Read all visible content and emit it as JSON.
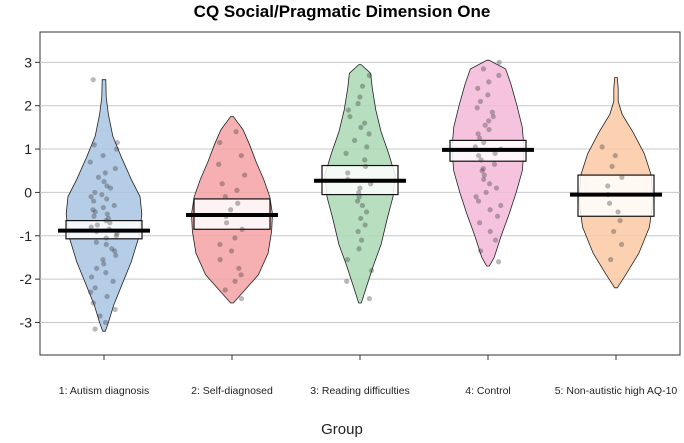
{
  "chart_data": {
    "type": "pirate",
    "title": "CQ Social/Pragmatic Dimension One",
    "xlabel": "Group",
    "ylabel": "",
    "ylim": [
      -3.75,
      3.7
    ],
    "yticks": [
      -3,
      -2,
      -1,
      0,
      1,
      2,
      3
    ],
    "grid": true,
    "categories": [
      "1: Autism diagnosis",
      "2: Self-diagnosed",
      "3: Reading difficulties",
      "4: Control",
      "5: Non-autistic high AQ-10"
    ],
    "colors": [
      "#a9c4e4",
      "#f5a2a5",
      "#a9d8b4",
      "#f4b8d9",
      "#fbc9a3"
    ],
    "groups": [
      {
        "mean": -0.88,
        "ci": [
          -1.07,
          -0.65
        ],
        "min": -3.2,
        "max": 2.6,
        "density": [
          [
            -3.2,
            0.03
          ],
          [
            -3.0,
            0.1
          ],
          [
            -2.6,
            0.22
          ],
          [
            -2.2,
            0.38
          ],
          [
            -1.6,
            0.62
          ],
          [
            -1.0,
            0.8
          ],
          [
            -0.5,
            0.86
          ],
          [
            -0.1,
            0.82
          ],
          [
            0.3,
            0.62
          ],
          [
            0.8,
            0.4
          ],
          [
            1.3,
            0.2
          ],
          [
            1.8,
            0.1
          ],
          [
            2.2,
            0.05
          ],
          [
            2.6,
            0.04
          ]
        ],
        "points": [
          -3.15,
          -3.0,
          -2.85,
          -2.7,
          -2.55,
          -2.4,
          -2.3,
          -2.2,
          -2.05,
          -1.95,
          -1.85,
          -1.75,
          -1.65,
          -1.55,
          -1.45,
          -1.35,
          -1.3,
          -1.2,
          -1.15,
          -1.05,
          -1.0,
          -0.95,
          -0.9,
          -0.85,
          -0.8,
          -0.75,
          -0.7,
          -0.65,
          -0.6,
          -0.55,
          -0.5,
          -0.45,
          -0.4,
          -0.35,
          -0.3,
          -0.2,
          -0.15,
          -0.1,
          -0.05,
          0.0,
          0.1,
          0.15,
          0.25,
          0.35,
          0.45,
          0.55,
          0.7,
          0.85,
          1.0,
          1.1,
          1.15,
          2.6
        ]
      },
      {
        "mean": -0.52,
        "ci": [
          -0.85,
          -0.15
        ],
        "min": -2.55,
        "max": 1.75,
        "density": [
          [
            -2.55,
            0.03
          ],
          [
            -2.3,
            0.25
          ],
          [
            -1.9,
            0.6
          ],
          [
            -1.4,
            0.82
          ],
          [
            -0.9,
            0.9
          ],
          [
            -0.5,
            0.92
          ],
          [
            -0.1,
            0.86
          ],
          [
            0.3,
            0.72
          ],
          [
            0.7,
            0.55
          ],
          [
            1.1,
            0.4
          ],
          [
            1.45,
            0.25
          ],
          [
            1.75,
            0.03
          ]
        ],
        "points": [
          -2.45,
          -2.25,
          -2.05,
          -1.9,
          -1.75,
          -1.55,
          -1.35,
          -1.2,
          -1.05,
          -0.85,
          -0.7,
          -0.55,
          -0.4,
          -0.25,
          -0.1,
          0.05,
          0.2,
          0.4,
          0.65,
          0.85,
          1.15,
          1.4
        ]
      },
      {
        "mean": 0.27,
        "ci": [
          -0.05,
          0.62
        ],
        "min": -2.55,
        "max": 2.95,
        "density": [
          [
            -2.55,
            0.03
          ],
          [
            -2.2,
            0.14
          ],
          [
            -1.7,
            0.3
          ],
          [
            -1.2,
            0.48
          ],
          [
            -0.6,
            0.62
          ],
          [
            -0.1,
            0.75
          ],
          [
            0.4,
            0.8
          ],
          [
            0.9,
            0.65
          ],
          [
            1.4,
            0.48
          ],
          [
            1.9,
            0.36
          ],
          [
            2.4,
            0.28
          ],
          [
            2.75,
            0.24
          ],
          [
            2.95,
            0.02
          ]
        ],
        "points": [
          -2.45,
          -2.05,
          -1.8,
          -1.55,
          -1.3,
          -1.1,
          -0.9,
          -0.75,
          -0.6,
          -0.45,
          -0.3,
          -0.2,
          -0.1,
          0.0,
          0.1,
          0.2,
          0.3,
          0.45,
          0.6,
          0.75,
          0.9,
          1.05,
          1.2,
          1.35,
          1.5,
          1.6,
          1.75,
          1.9,
          2.05,
          2.2,
          2.45,
          2.7
        ]
      },
      {
        "mean": 0.98,
        "ci": [
          0.72,
          1.2
        ],
        "min": -1.7,
        "max": 3.05,
        "density": [
          [
            -1.7,
            0.03
          ],
          [
            -1.5,
            0.14
          ],
          [
            -1.0,
            0.3
          ],
          [
            -0.5,
            0.48
          ],
          [
            0.0,
            0.64
          ],
          [
            0.5,
            0.78
          ],
          [
            1.0,
            0.82
          ],
          [
            1.5,
            0.78
          ],
          [
            2.0,
            0.66
          ],
          [
            2.5,
            0.52
          ],
          [
            2.85,
            0.4
          ],
          [
            3.05,
            0.02
          ]
        ],
        "points": [
          -1.6,
          -1.35,
          -1.1,
          -0.9,
          -0.7,
          -0.55,
          -0.4,
          -0.3,
          -0.2,
          -0.1,
          0.0,
          0.1,
          0.2,
          0.3,
          0.4,
          0.5,
          0.55,
          0.65,
          0.75,
          0.85,
          0.9,
          1.0,
          1.05,
          1.15,
          1.25,
          1.35,
          1.45,
          1.55,
          1.65,
          1.75,
          1.85,
          1.95,
          2.1,
          2.25,
          2.4,
          2.55,
          2.7,
          2.85,
          3.0
        ]
      },
      {
        "mean": -0.05,
        "ci": [
          -0.55,
          0.4
        ],
        "min": -2.2,
        "max": 2.65,
        "density": [
          [
            -2.2,
            0.03
          ],
          [
            -1.9,
            0.22
          ],
          [
            -1.4,
            0.52
          ],
          [
            -0.8,
            0.76
          ],
          [
            -0.2,
            0.84
          ],
          [
            0.4,
            0.8
          ],
          [
            0.9,
            0.64
          ],
          [
            1.4,
            0.38
          ],
          [
            1.8,
            0.14
          ],
          [
            2.1,
            0.05
          ],
          [
            2.4,
            0.05
          ],
          [
            2.65,
            0.03
          ]
        ],
        "points": [
          -1.55,
          -1.2,
          -0.9,
          -0.65,
          -0.45,
          -0.25,
          -0.05,
          0.15,
          0.35,
          0.6,
          0.85,
          1.05
        ]
      }
    ]
  }
}
